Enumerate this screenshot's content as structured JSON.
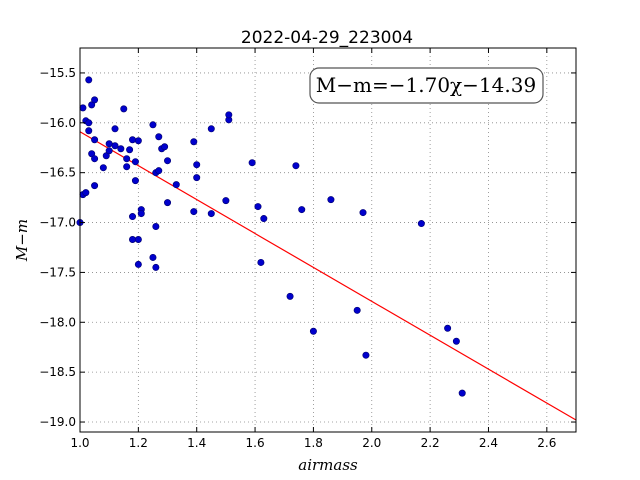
{
  "chart_data": {
    "type": "scatter",
    "title": "2022-04-29_223004",
    "xlabel": "airmass",
    "ylabel": "M−m",
    "xlim": [
      1.0,
      2.7
    ],
    "ylim": [
      -19.1,
      -15.25
    ],
    "y_inverted": true,
    "grid": true,
    "x_ticks": [
      1.0,
      1.2,
      1.4,
      1.6,
      1.8,
      2.0,
      2.2,
      2.4,
      2.6
    ],
    "x_tick_labels": [
      "1.0",
      "1.2",
      "1.4",
      "1.6",
      "1.8",
      "2.0",
      "2.2",
      "2.4",
      "2.6"
    ],
    "y_ticks": [
      -15.5,
      -16.0,
      -16.5,
      -17.0,
      -17.5,
      -18.0,
      -18.5,
      -19.0
    ],
    "y_tick_labels": [
      "−15.5",
      "−16.0",
      "−16.5",
      "−17.0",
      "−17.5",
      "−18.0",
      "−18.5",
      "−19.0"
    ],
    "annotation": "M−m=−1.70χ−14.39",
    "annotation_placement": "top-right",
    "fit": {
      "slope": -1.7,
      "intercept": -14.39,
      "color": "#ff0000"
    },
    "point_color": "#0000cc",
    "points": [
      [
        1.0,
        -17.0
      ],
      [
        1.01,
        -16.72
      ],
      [
        1.01,
        -15.85
      ],
      [
        1.02,
        -16.7
      ],
      [
        1.02,
        -15.98
      ],
      [
        1.03,
        -16.0
      ],
      [
        1.03,
        -16.08
      ],
      [
        1.03,
        -15.57
      ],
      [
        1.04,
        -16.31
      ],
      [
        1.04,
        -15.82
      ],
      [
        1.05,
        -16.36
      ],
      [
        1.05,
        -16.17
      ],
      [
        1.05,
        -15.77
      ],
      [
        1.05,
        -16.63
      ],
      [
        1.08,
        -16.45
      ],
      [
        1.09,
        -16.33
      ],
      [
        1.1,
        -16.28
      ],
      [
        1.1,
        -16.21
      ],
      [
        1.12,
        -16.23
      ],
      [
        1.12,
        -16.06
      ],
      [
        1.14,
        -16.26
      ],
      [
        1.15,
        -15.86
      ],
      [
        1.16,
        -16.36
      ],
      [
        1.16,
        -16.44
      ],
      [
        1.17,
        -16.27
      ],
      [
        1.18,
        -16.17
      ],
      [
        1.18,
        -16.94
      ],
      [
        1.18,
        -17.17
      ],
      [
        1.19,
        -16.58
      ],
      [
        1.19,
        -16.39
      ],
      [
        1.2,
        -16.18
      ],
      [
        1.2,
        -17.17
      ],
      [
        1.2,
        -17.42
      ],
      [
        1.21,
        -16.87
      ],
      [
        1.21,
        -16.91
      ],
      [
        1.25,
        -16.02
      ],
      [
        1.25,
        -17.35
      ],
      [
        1.26,
        -17.45
      ],
      [
        1.26,
        -17.04
      ],
      [
        1.26,
        -16.5
      ],
      [
        1.27,
        -16.48
      ],
      [
        1.27,
        -16.14
      ],
      [
        1.28,
        -16.26
      ],
      [
        1.29,
        -16.24
      ],
      [
        1.3,
        -16.38
      ],
      [
        1.3,
        -16.8
      ],
      [
        1.33,
        -16.62
      ],
      [
        1.39,
        -16.19
      ],
      [
        1.39,
        -16.89
      ],
      [
        1.4,
        -16.55
      ],
      [
        1.4,
        -16.42
      ],
      [
        1.45,
        -16.06
      ],
      [
        1.45,
        -16.91
      ],
      [
        1.5,
        -16.78
      ],
      [
        1.51,
        -15.97
      ],
      [
        1.51,
        -15.92
      ],
      [
        1.59,
        -16.4
      ],
      [
        1.61,
        -16.84
      ],
      [
        1.62,
        -17.4
      ],
      [
        1.63,
        -16.96
      ],
      [
        1.72,
        -17.74
      ],
      [
        1.74,
        -16.43
      ],
      [
        1.76,
        -16.87
      ],
      [
        1.8,
        -18.09
      ],
      [
        1.86,
        -16.77
      ],
      [
        1.95,
        -17.88
      ],
      [
        1.97,
        -16.9
      ],
      [
        1.98,
        -18.33
      ],
      [
        2.17,
        -17.01
      ],
      [
        2.26,
        -18.06
      ],
      [
        2.29,
        -18.19
      ],
      [
        2.31,
        -18.71
      ]
    ]
  }
}
